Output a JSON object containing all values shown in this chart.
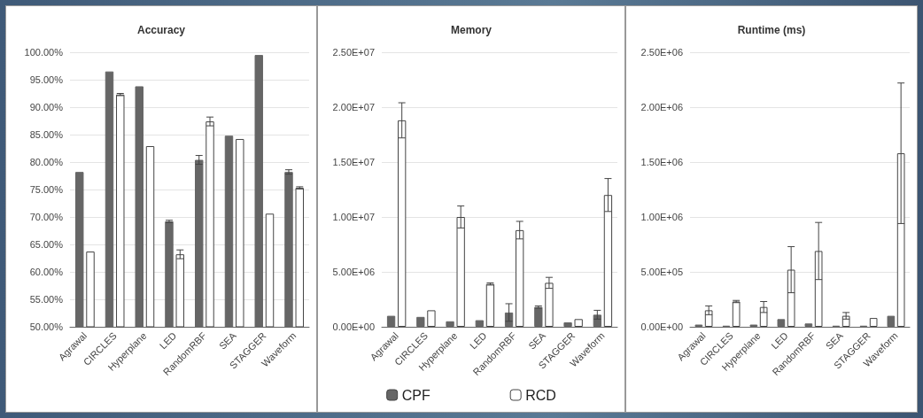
{
  "chart_data": [
    {
      "type": "bar",
      "title": "Accuracy",
      "categories": [
        "Agrawal",
        "CIRCLES",
        "Hyperplane",
        "LED",
        "RandomRBF",
        "SEA",
        "STAGGER",
        "Waveform"
      ],
      "series": [
        {
          "color": "#666666",
          "values": [
            78.2,
            96.5,
            93.8,
            69.2,
            80.4,
            84.8,
            99.5,
            78.2
          ],
          "errors": [
            null,
            null,
            null,
            0.2,
            0.8,
            null,
            null,
            0.4
          ]
        },
        {
          "color": "#ffffff",
          "values": [
            63.7,
            92.3,
            82.9,
            63.2,
            87.4,
            84.2,
            70.6,
            75.3
          ],
          "errors": [
            null,
            0.2,
            null,
            0.8,
            0.8,
            null,
            null,
            0.2
          ]
        }
      ],
      "ylim": [
        50,
        100
      ],
      "yticks": [
        {
          "value": 50,
          "label": "50.00%"
        },
        {
          "value": 55,
          "label": "55.00%"
        },
        {
          "value": 60,
          "label": "60.00%"
        },
        {
          "value": 65,
          "label": "65.00%"
        },
        {
          "value": 70,
          "label": "70.00%"
        },
        {
          "value": 75,
          "label": "75.00%"
        },
        {
          "value": 80,
          "label": "80.00%"
        },
        {
          "value": 85,
          "label": "85.00%"
        },
        {
          "value": 90,
          "label": "90.00%"
        },
        {
          "value": 95,
          "label": "95.00%"
        },
        {
          "value": 100,
          "label": "100.00%"
        }
      ],
      "grid": "y"
    },
    {
      "type": "bar",
      "title": "Memory",
      "categories": [
        "Agrawal",
        "CIRCLES",
        "Hyperplane",
        "LED",
        "RandomRBF",
        "SEA",
        "STAGGER",
        "Waveform"
      ],
      "series": [
        {
          "name": "CPF",
          "color": "#666666",
          "values": [
            1000000,
            900000,
            500000,
            600000,
            1300000,
            1800000,
            400000,
            1100000
          ],
          "errors": [
            null,
            null,
            null,
            null,
            800000,
            100000,
            null,
            400000
          ]
        },
        {
          "name": "RCD",
          "color": "#ffffff",
          "values": [
            18800000,
            1500000,
            10000000,
            3900000,
            8800000,
            4000000,
            700000,
            12000000
          ],
          "errors": [
            1600000,
            null,
            1000000,
            100000,
            800000,
            500000,
            null,
            1500000
          ]
        }
      ],
      "ylim": [
        0,
        25000000
      ],
      "yticks": [
        {
          "value": 0,
          "label": "0.00E+00"
        },
        {
          "value": 5000000,
          "label": "5.00E+06"
        },
        {
          "value": 10000000,
          "label": "1.00E+07"
        },
        {
          "value": 15000000,
          "label": "1.50E+07"
        },
        {
          "value": 20000000,
          "label": "2.00E+07"
        },
        {
          "value": 25000000,
          "label": "2.50E+07"
        }
      ],
      "grid": "y",
      "legend": "bottom"
    },
    {
      "type": "bar",
      "title": "Runtime (ms)",
      "categories": [
        "Agrawal",
        "CIRCLES",
        "Hyperplane",
        "LED",
        "RandomRBF",
        "SEA",
        "STAGGER",
        "Waveform"
      ],
      "series": [
        {
          "color": "#666666",
          "values": [
            20000,
            10000,
            20000,
            70000,
            30000,
            10000,
            10000,
            100000
          ]
        },
        {
          "color": "#ffffff",
          "values": [
            150000,
            230000,
            180000,
            520000,
            690000,
            100000,
            80000,
            1580000
          ],
          "errors": [
            40000,
            10000,
            50000,
            210000,
            260000,
            30000,
            null,
            640000
          ]
        }
      ],
      "ylim": [
        0,
        2500000
      ],
      "yticks": [
        {
          "value": 0,
          "label": "0.00E+00"
        },
        {
          "value": 500000,
          "label": "5.00E+05"
        },
        {
          "value": 1000000,
          "label": "1.00E+06"
        },
        {
          "value": 1500000,
          "label": "1.50E+06"
        },
        {
          "value": 2000000,
          "label": "2.00E+06"
        },
        {
          "value": 2500000,
          "label": "2.50E+06"
        }
      ],
      "grid": "y"
    }
  ]
}
